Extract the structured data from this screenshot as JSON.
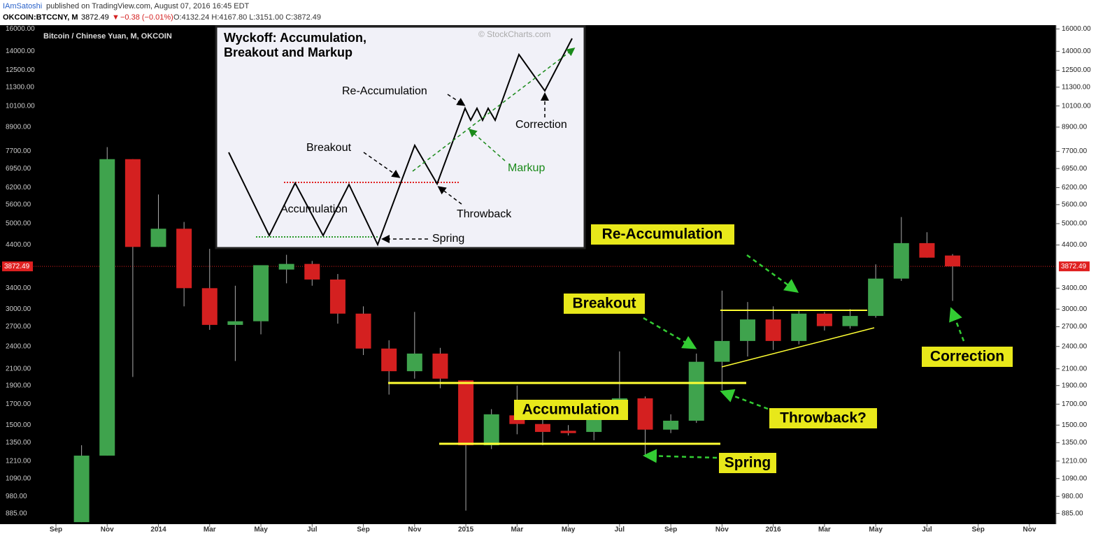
{
  "header": {
    "author": "IAmSatoshi",
    "published": "published on TradingView.com, August 07, 2016 16:45 EDT",
    "symbol": "OKCOIN:BTCCNY, M",
    "last": "3872.49",
    "direction": "▼",
    "change": "−0.38 (−0.01%)",
    "ohlc_text": "O:4132.24 H:4167.80 L:3151.00 C:3872.49"
  },
  "chart_data": {
    "type": "candlestick",
    "title": "Bitcoin / Chinese Yuan, M, OKCOIN",
    "categories": [
      "Sep",
      null,
      "Nov",
      null,
      "2014",
      null,
      "Mar",
      null,
      "May",
      null,
      "Jul",
      null,
      "Sep",
      null,
      "Nov",
      null,
      "2015",
      null,
      "Mar",
      null,
      "May",
      null,
      "Jul",
      null,
      "Sep",
      null,
      "Nov",
      null,
      "2016",
      null,
      "Mar",
      null,
      "May",
      null,
      "Jul",
      null,
      "Sep",
      null,
      "Nov"
    ],
    "open": [
      null,
      840,
      1250,
      7350,
      4350,
      4850,
      3400,
      2730,
      2790,
      3800,
      3930,
      3580,
      2920,
      2370,
      2070,
      2300,
      1960,
      1330,
      1590,
      1510,
      1450,
      1440,
      1630,
      1760,
      1460,
      1540,
      2190,
      2480,
      2820,
      2480,
      2920,
      2710,
      2880,
      3600,
      4450,
      4132.24,
      null,
      null,
      null
    ],
    "high": [
      null,
      1330,
      7900,
      7350,
      5950,
      5050,
      4300,
      3450,
      3900,
      4150,
      4000,
      3700,
      3050,
      2490,
      2950,
      2380,
      1960,
      1650,
      1900,
      1560,
      1500,
      1700,
      2330,
      1780,
      1600,
      2300,
      3350,
      3130,
      3050,
      2990,
      2950,
      3000,
      3920,
      5200,
      4750,
      4167.8,
      null,
      null,
      null
    ],
    "low": [
      null,
      840,
      1250,
      2000,
      4350,
      3050,
      2650,
      2200,
      2580,
      3500,
      3450,
      2750,
      2280,
      1800,
      1980,
      1870,
      900,
      1300,
      1420,
      1330,
      1410,
      1370,
      1560,
      1240,
      1430,
      1520,
      1850,
      2260,
      2350,
      2430,
      2640,
      2670,
      2850,
      3550,
      4080,
      3151,
      null,
      null,
      null
    ],
    "close": [
      null,
      1250,
      7350,
      4350,
      4850,
      3400,
      2730,
      2790,
      3900,
      3930,
      3580,
      2920,
      2370,
      2070,
      2300,
      1980,
      1330,
      1600,
      1510,
      1440,
      1430,
      1630,
      1760,
      1460,
      1540,
      2190,
      2480,
      2820,
      2480,
      2920,
      2710,
      2880,
      3600,
      4450,
      4080,
      3872.49,
      null,
      null,
      null
    ],
    "up_color": "#3fa34d",
    "down_color": "#d42020",
    "log_scale": true,
    "ylim": [
      830,
      16300
    ],
    "yticks": [
      {
        "value": 16000,
        "label": "16000.00"
      },
      {
        "value": 14000,
        "label": "14000.00"
      },
      {
        "value": 12500,
        "label": "12500.00"
      },
      {
        "value": 11300,
        "label": "11300.00"
      },
      {
        "value": 10100,
        "label": "10100.00"
      },
      {
        "value": 8900,
        "label": "8900.00"
      },
      {
        "value": 7700,
        "label": "7700.00"
      },
      {
        "value": 6950,
        "label": "6950.00"
      },
      {
        "value": 6200,
        "label": "6200.00"
      },
      {
        "value": 5600,
        "label": "5600.00"
      },
      {
        "value": 5000,
        "label": "5000.00"
      },
      {
        "value": 4400,
        "label": "4400.00"
      },
      {
        "value": 3400,
        "label": "3400.00"
      },
      {
        "value": 3000,
        "label": "3000.00"
      },
      {
        "value": 2700,
        "label": "2700.00"
      },
      {
        "value": 2400,
        "label": "2400.00"
      },
      {
        "value": 2100,
        "label": "2100.00"
      },
      {
        "value": 1900,
        "label": "1900.00"
      },
      {
        "value": 1700,
        "label": "1700.00"
      },
      {
        "value": 1500,
        "label": "1500.00"
      },
      {
        "value": 1350,
        "label": "1350.00"
      },
      {
        "value": 1210,
        "label": "1210.00"
      },
      {
        "value": 1090,
        "label": "1090.00"
      },
      {
        "value": 980,
        "label": "980.00"
      },
      {
        "value": 885,
        "label": "885.00"
      }
    ],
    "price_line": {
      "value": 3872.49,
      "label": "3872.49",
      "color": "#e02020"
    },
    "grid": false,
    "annotations": {
      "reaccumulation": "Re-Accumulation",
      "breakout": "Breakout",
      "accumulation": "Accumulation",
      "throwback": "Throwback?",
      "spring": "Spring",
      "correction": "Correction"
    },
    "inset": {
      "title_1": "Wyckoff: Accumulation,",
      "title_2": "Breakout and Markup",
      "credit": "© StockCharts.com",
      "reaccumulation": "Re-Accumulation",
      "correction": "Correction",
      "breakout": "Breakout",
      "markup": "Markup",
      "accumulation": "Accumulation",
      "throwback": "Throwback",
      "spring": "Spring"
    }
  }
}
